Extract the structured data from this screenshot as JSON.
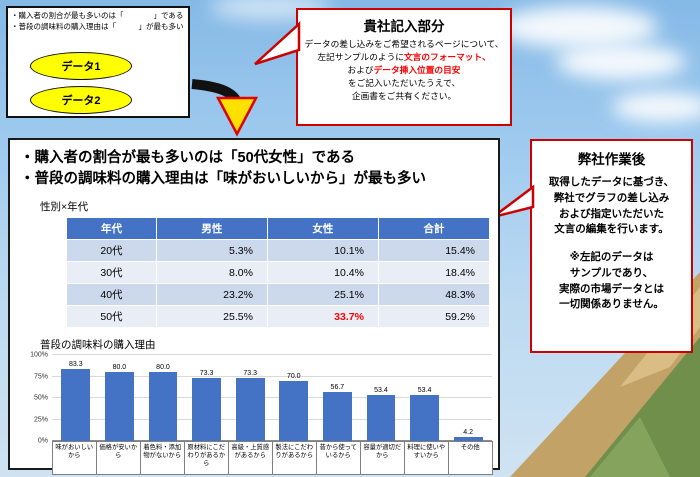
{
  "colors": {
    "callout_border_red": "#CC0000",
    "highlight_red": "#FF0000",
    "table_header_blue": "#4472C4",
    "bar_blue": "#4472C4",
    "data_ellipse_yellow": "#FFFF00",
    "row_band_dark": "#CCD8EB",
    "row_band_light": "#E9EDF6"
  },
  "sample_box": {
    "bullet1": "・購入者の割合が最も多いのは「　　　　」である",
    "bullet2": "・普段の調味料の購入理由は「　　　」が最も多い",
    "data1": "データ1",
    "data2": "データ2"
  },
  "client_box": {
    "title": "貴社記入部分",
    "line1": "データの差し込みをご希望されるページについて、",
    "line2_black": "左記サンプルのように",
    "line2_red": "文言のフォーマット、",
    "line3_black": "および",
    "line3_red": "データ挿入位置の目安",
    "line4": "をご記入いただいたうえで、",
    "line5": "企画書をご共有ください。"
  },
  "vendor_box": {
    "title": "弊社作業後",
    "body_lines": [
      "取得したデータに基づき、",
      "弊社でグラフの差し込み",
      "および指定いただいた",
      "文言の編集を行います。"
    ],
    "note_lines": [
      "※左記のデータは",
      "サンプルであり、",
      "実際の市場データとは",
      "一切関係ありません。"
    ]
  },
  "main_box": {
    "headline1": "・購入者の割合が最も多いのは「50代女性」である",
    "headline2": "・普段の調味料の購入理由は「味がおいしいから」が最も多い",
    "table_title": "性別×年代",
    "table": {
      "headers": [
        "年代",
        "男性",
        "女性",
        "合計"
      ],
      "rows": [
        [
          "20代",
          "5.3%",
          "10.1%",
          "15.4%"
        ],
        [
          "30代",
          "8.0%",
          "10.4%",
          "18.4%"
        ],
        [
          "40代",
          "23.2%",
          "25.1%",
          "48.3%"
        ],
        [
          "50代",
          "25.5%",
          "33.7%",
          "59.2%"
        ]
      ],
      "highlight": {
        "row": 3,
        "col": 2,
        "value": "33.7%"
      }
    }
  },
  "chart_data": {
    "type": "bar",
    "title": "普段の調味料の購入理由",
    "categories": [
      "味がおいしいから",
      "価格が安いから",
      "着色料・添加物がないから",
      "原材料にこだわりがあるから",
      "高級・上質感があるから",
      "製法にこだわりがあるから",
      "昔から使っているから",
      "容量が適切だから",
      "料理に使いやすいから",
      "その他"
    ],
    "values": [
      83.3,
      80.0,
      80.0,
      73.3,
      73.3,
      70.0,
      56.7,
      53.4,
      53.4,
      4.2
    ],
    "ylim": [
      0,
      100
    ],
    "yticks": [
      "0%",
      "25%",
      "50%",
      "75%",
      "100%"
    ],
    "bar_color": "#4472C4",
    "grid": true,
    "legend": "none"
  }
}
